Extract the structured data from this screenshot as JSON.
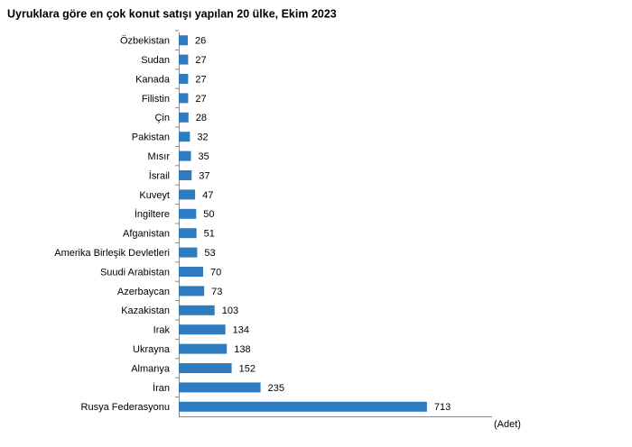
{
  "chart_data": {
    "type": "barh",
    "title": "Uyruklara göre en çok konut satışı yapılan 20 ülke, Ekim 2023",
    "x_label": "(Adet)",
    "categories": [
      "Özbekistan",
      "Sudan",
      "Kanada",
      "Filistin",
      "Çin",
      "Pakistan",
      "Mısır",
      "İsrail",
      "Kuveyt",
      "İngiltere",
      "Afganistan",
      "Amerika Birleşik Devletleri",
      "Suudi Arabistan",
      "Azerbaycan",
      "Kazakistan",
      "Irak",
      "Ukrayna",
      "Almanya",
      "İran",
      "Rusya Federasyonu"
    ],
    "values": [
      26,
      27,
      27,
      27,
      28,
      32,
      35,
      37,
      47,
      50,
      51,
      53,
      70,
      73,
      103,
      134,
      138,
      152,
      235,
      713
    ],
    "color": "#2e7bbf",
    "xlim": [
      0,
      900
    ]
  }
}
